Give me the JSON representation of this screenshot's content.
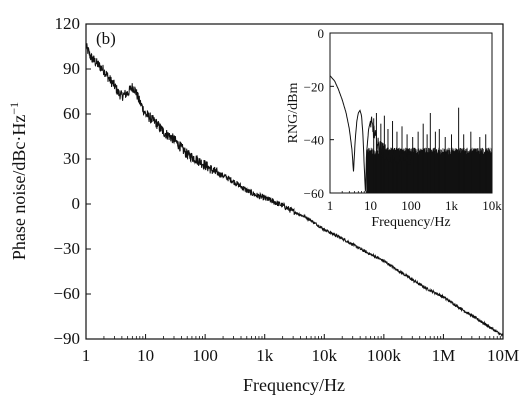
{
  "chart_data": [
    {
      "type": "line",
      "panel_label": "(b)",
      "xlabel": "Frequency/Hz",
      "ylabel": "Phase noise/dBc·Hz",
      "ylabel_sup": "−1",
      "xscale": "log",
      "xlim": [
        1,
        10000000
      ],
      "ylim": [
        -90,
        120
      ],
      "grid": false,
      "x_ticks": [
        {
          "value": 1,
          "label": "1"
        },
        {
          "value": 10,
          "label": "10"
        },
        {
          "value": 100,
          "label": "100"
        },
        {
          "value": 1000,
          "label": "1k"
        },
        {
          "value": 10000,
          "label": "10k"
        },
        {
          "value": 100000,
          "label": "100k"
        },
        {
          "value": 1000000,
          "label": "1M"
        },
        {
          "value": 10000000,
          "label": "10M"
        }
      ],
      "y_ticks": [
        {
          "value": 120,
          "label": "120"
        },
        {
          "value": 90,
          "label": "90"
        },
        {
          "value": 60,
          "label": "60"
        },
        {
          "value": 30,
          "label": "30"
        },
        {
          "value": 0,
          "label": "0"
        },
        {
          "value": -30,
          "label": "−30"
        },
        {
          "value": -60,
          "label": "−60"
        },
        {
          "value": -90,
          "label": "−90"
        }
      ],
      "series": [
        {
          "color": "#111111",
          "x": [
            1,
            1.2,
            1.5,
            2,
            2.5,
            3,
            3.5,
            4,
            5,
            6,
            6.5,
            7,
            8,
            10,
            15,
            20,
            30,
            50,
            70,
            100,
            150,
            200,
            300,
            500,
            700,
            1000,
            2000,
            3000,
            5000,
            10000,
            20000,
            50000,
            100000,
            200000,
            500000,
            1000000,
            2000000,
            5000000,
            10000000
          ],
          "y": [
            105,
            98,
            94,
            89,
            83,
            79,
            74,
            72,
            74,
            78,
            77,
            74,
            68,
            60,
            54,
            48,
            43,
            33,
            30,
            26,
            21,
            19,
            15,
            9,
            6,
            4,
            -1,
            -5,
            -9,
            -17,
            -23,
            -32,
            -38,
            -46,
            -56,
            -62,
            -70,
            -80,
            -88
          ]
        }
      ]
    },
    {
      "type": "line",
      "role": "inset",
      "xlabel": "Frequency/Hz",
      "ylabel": "RNG/dBm",
      "xscale": "log",
      "xlim": [
        1,
        10000
      ],
      "ylim": [
        -60,
        0
      ],
      "grid": false,
      "x_ticks": [
        {
          "value": 1,
          "label": "1"
        },
        {
          "value": 10,
          "label": "10"
        },
        {
          "value": 100,
          "label": "100"
        },
        {
          "value": 1000,
          "label": "1k"
        },
        {
          "value": 10000,
          "label": "10k"
        }
      ],
      "y_ticks": [
        {
          "value": 0,
          "label": "0"
        },
        {
          "value": -20,
          "label": "−20"
        },
        {
          "value": -40,
          "label": "−40"
        },
        {
          "value": -60,
          "label": "−60"
        }
      ],
      "series": [
        {
          "color": "#111111",
          "x": [
            1,
            1.3,
            1.6,
            2,
            2.5,
            3,
            3.5,
            3.8,
            4.2,
            4.6,
            5,
            5.5,
            6,
            6.5,
            7,
            7.5,
            8,
            9,
            10,
            12,
            15,
            20,
            30,
            50,
            100
          ],
          "y": [
            -16,
            -18,
            -21,
            -25,
            -30,
            -36,
            -44,
            -52,
            -40,
            -33,
            -30,
            -29,
            -31,
            -38,
            -50,
            -60,
            -45,
            -36,
            -33,
            -37,
            -42,
            -44,
            -46,
            -46,
            -47
          ]
        }
      ],
      "spikes": [
        {
          "x": 12,
          "y": -32
        },
        {
          "x": 14,
          "y": -30
        },
        {
          "x": 18,
          "y": -34
        },
        {
          "x": 22,
          "y": -31
        },
        {
          "x": 27,
          "y": -36
        },
        {
          "x": 35,
          "y": -33
        },
        {
          "x": 45,
          "y": -37
        },
        {
          "x": 60,
          "y": -35
        },
        {
          "x": 80,
          "y": -38
        },
        {
          "x": 110,
          "y": -39
        },
        {
          "x": 150,
          "y": -37
        },
        {
          "x": 200,
          "y": -34
        },
        {
          "x": 250,
          "y": -38
        },
        {
          "x": 300,
          "y": -30
        },
        {
          "x": 400,
          "y": -37
        },
        {
          "x": 500,
          "y": -36
        },
        {
          "x": 700,
          "y": -39
        },
        {
          "x": 1000,
          "y": -38
        },
        {
          "x": 1500,
          "y": -28
        },
        {
          "x": 2000,
          "y": -38
        },
        {
          "x": 3000,
          "y": -37
        },
        {
          "x": 5000,
          "y": -39
        },
        {
          "x": 7000,
          "y": -38
        }
      ],
      "noise_floor": [
        -60,
        -43
      ]
    }
  ]
}
